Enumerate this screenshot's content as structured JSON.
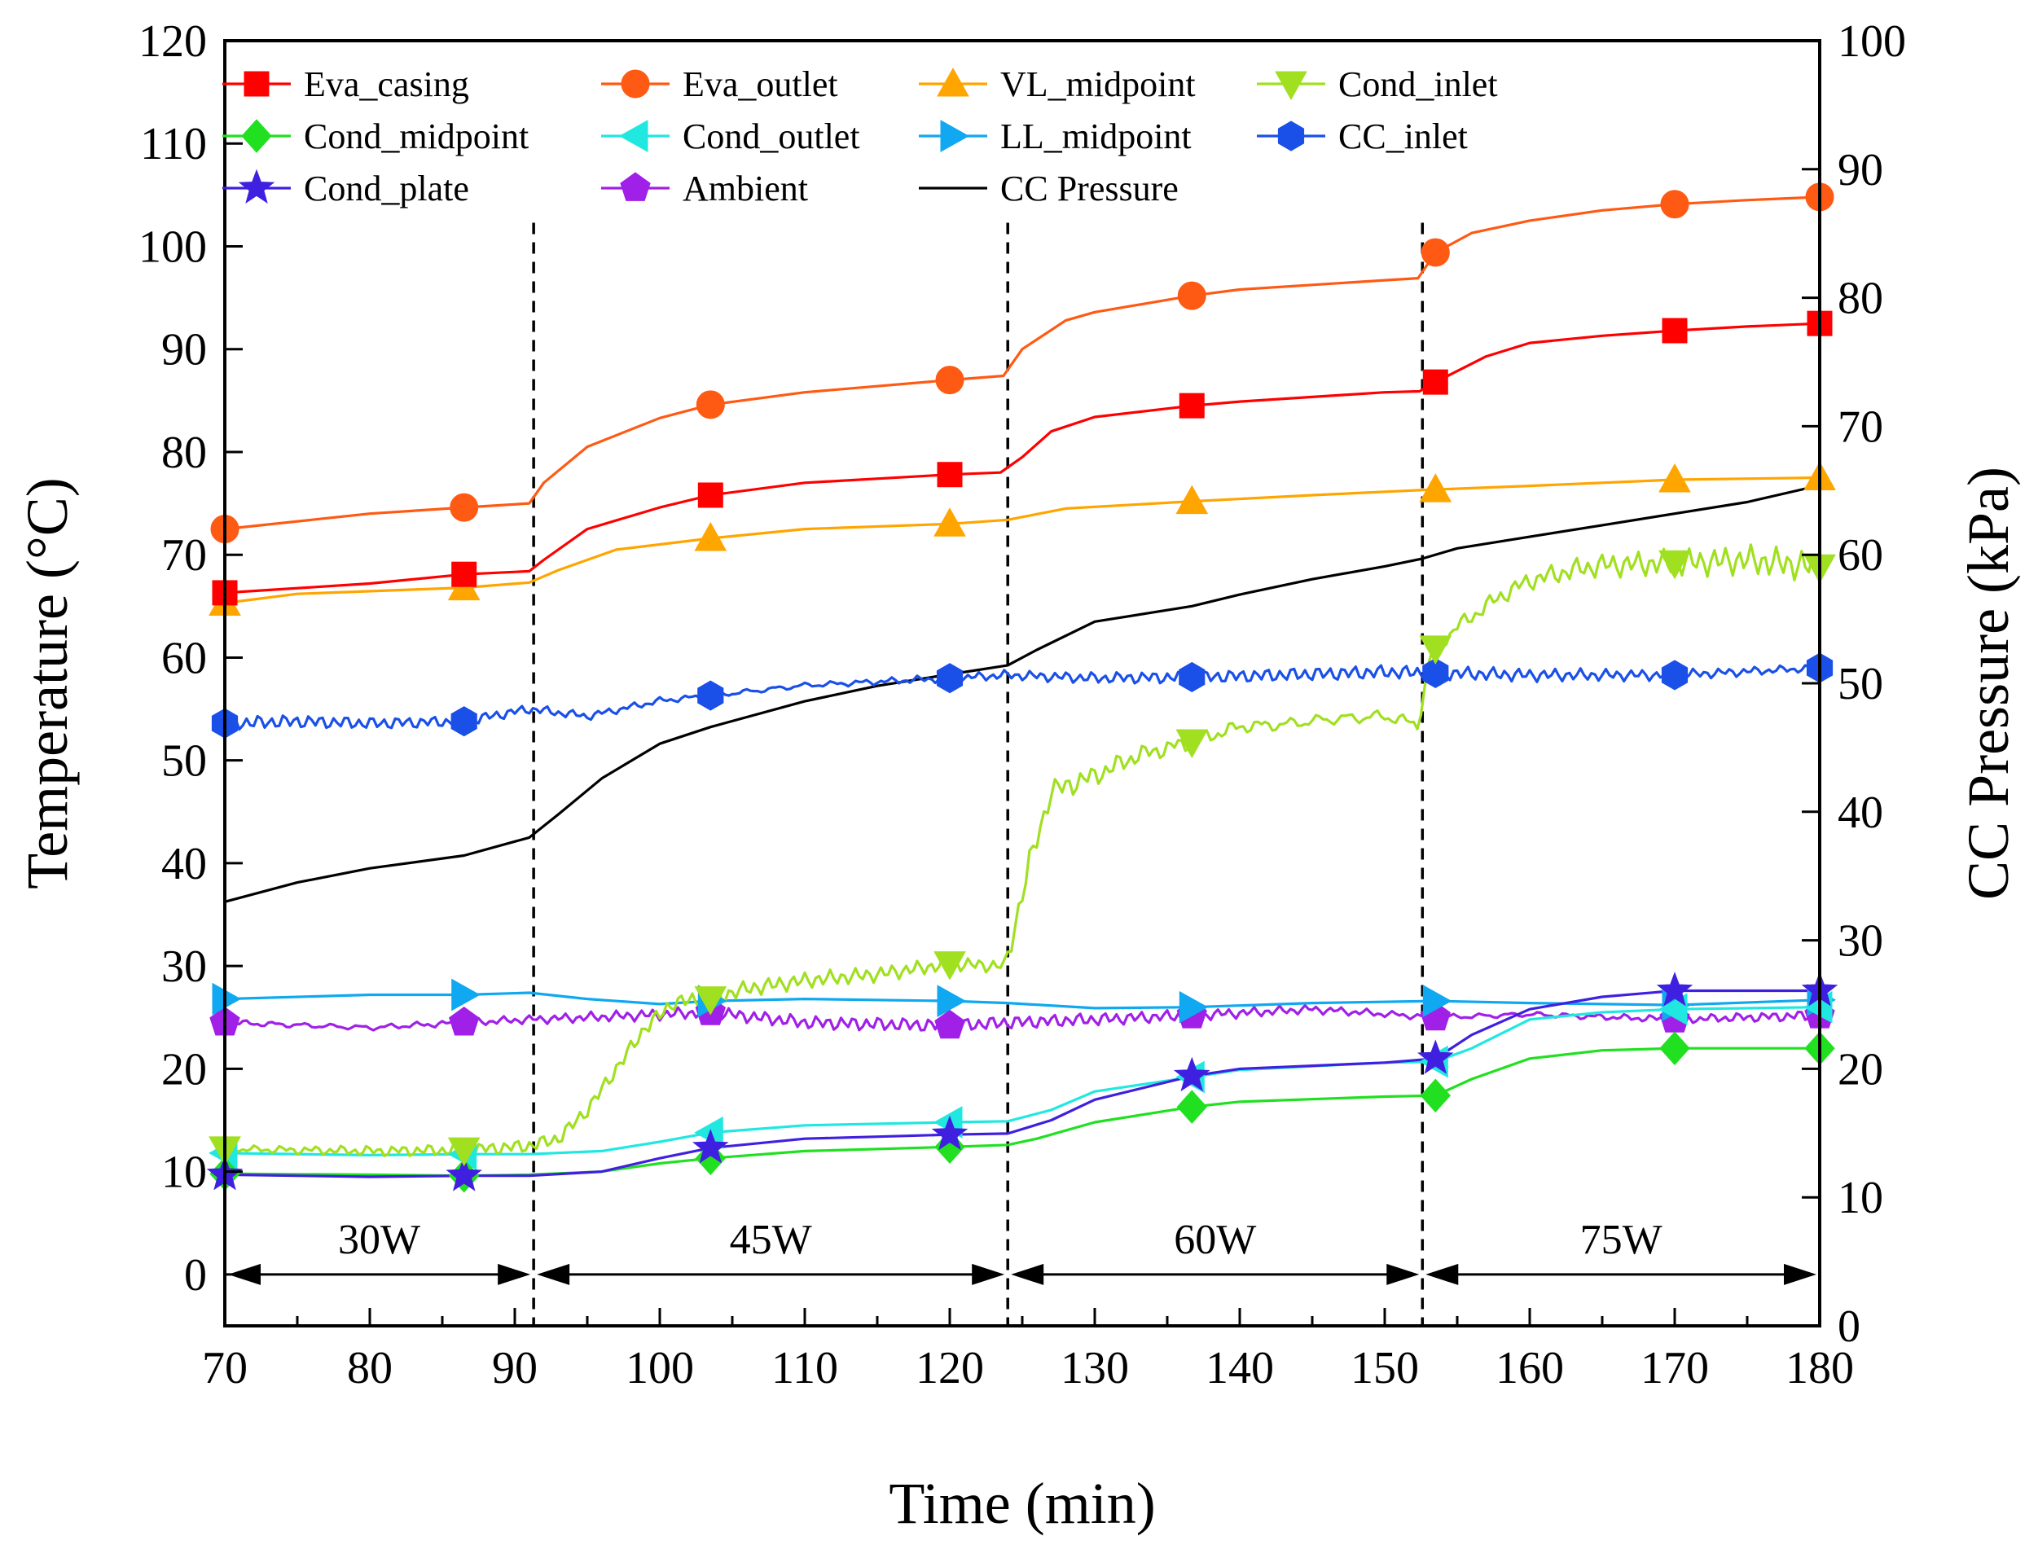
{
  "chart_data": {
    "type": "line",
    "title": "",
    "xlabel": "Time (min)",
    "ylabel": "Temperature (°C)",
    "y2label": "CC Pressure (kPa)",
    "xlim": [
      70,
      180
    ],
    "ylim": [
      -5,
      120
    ],
    "y2lim": [
      0,
      100
    ],
    "x_ticks": [
      70,
      80,
      90,
      100,
      110,
      120,
      130,
      140,
      150,
      160,
      170,
      180
    ],
    "y_ticks": [
      0,
      10,
      20,
      30,
      40,
      50,
      60,
      70,
      80,
      90,
      100,
      110,
      120
    ],
    "y2_ticks": [
      0,
      10,
      20,
      30,
      40,
      50,
      60,
      70,
      80,
      90,
      100
    ],
    "legend_position": "top",
    "phase_dividers": [
      91.3,
      124.0,
      152.6
    ],
    "phases": [
      {
        "label": "30W",
        "start": 70,
        "end": 91.3
      },
      {
        "label": "45W",
        "start": 91.3,
        "end": 124.0
      },
      {
        "label": "60W",
        "start": 124.0,
        "end": 152.6
      },
      {
        "label": "75W",
        "start": 152.6,
        "end": 180
      }
    ],
    "series": [
      {
        "name": "Eva_casing",
        "color": "#ff0000",
        "marker": "square",
        "axis": "left",
        "points": [
          [
            70,
            66.3
          ],
          [
            80,
            67.2
          ],
          [
            86.5,
            68.1
          ],
          [
            91,
            68.4
          ],
          [
            92,
            69.5
          ],
          [
            95,
            72.5
          ],
          [
            100,
            74.6
          ],
          [
            103.5,
            75.8
          ],
          [
            110,
            77.0
          ],
          [
            120,
            77.8
          ],
          [
            123.5,
            78.0
          ],
          [
            125,
            79.5
          ],
          [
            127,
            82.0
          ],
          [
            130,
            83.4
          ],
          [
            136.7,
            84.5
          ],
          [
            140,
            84.9
          ],
          [
            150,
            85.8
          ],
          [
            152.4,
            85.9
          ],
          [
            153.5,
            86.8
          ],
          [
            157,
            89.3
          ],
          [
            160,
            90.6
          ],
          [
            165,
            91.3
          ],
          [
            170,
            91.8
          ],
          [
            175,
            92.2
          ],
          [
            180,
            92.5
          ]
        ],
        "markers": [
          70,
          86.5,
          103.5,
          120,
          136.7,
          153.5,
          170,
          180
        ]
      },
      {
        "name": "Eva_outlet",
        "color": "#ff5a14",
        "marker": "circle",
        "axis": "left",
        "points": [
          [
            70,
            72.5
          ],
          [
            80,
            74.0
          ],
          [
            86.5,
            74.6
          ],
          [
            91,
            75.0
          ],
          [
            92,
            77.0
          ],
          [
            95,
            80.5
          ],
          [
            100,
            83.3
          ],
          [
            103.5,
            84.6
          ],
          [
            110,
            85.8
          ],
          [
            120,
            87.0
          ],
          [
            123.7,
            87.4
          ],
          [
            125,
            90.0
          ],
          [
            128,
            92.8
          ],
          [
            130,
            93.6
          ],
          [
            136.7,
            95.2
          ],
          [
            140,
            95.8
          ],
          [
            150,
            96.7
          ],
          [
            152.3,
            96.9
          ],
          [
            153.5,
            99.4
          ],
          [
            156,
            101.3
          ],
          [
            160,
            102.5
          ],
          [
            165,
            103.5
          ],
          [
            170,
            104.1
          ],
          [
            175,
            104.5
          ],
          [
            180,
            104.8
          ]
        ],
        "markers": [
          70,
          86.5,
          103.5,
          120,
          136.7,
          153.5,
          170,
          180
        ]
      },
      {
        "name": "VL_midpoint",
        "color": "#ffa500",
        "marker": "triangle-up",
        "axis": "left",
        "points": [
          [
            70,
            65.3
          ],
          [
            75,
            66.2
          ],
          [
            86.5,
            66.8
          ],
          [
            91,
            67.3
          ],
          [
            93,
            68.5
          ],
          [
            97,
            70.5
          ],
          [
            103.5,
            71.6
          ],
          [
            110,
            72.5
          ],
          [
            120,
            73.0
          ],
          [
            124,
            73.4
          ],
          [
            128,
            74.5
          ],
          [
            136.7,
            75.2
          ],
          [
            145,
            75.8
          ],
          [
            152.6,
            76.3
          ],
          [
            160,
            76.7
          ],
          [
            170,
            77.3
          ],
          [
            180,
            77.5
          ]
        ],
        "markers": [
          70,
          86.5,
          103.5,
          120,
          136.7,
          153.5,
          170,
          180
        ]
      },
      {
        "name": "Cond_inlet",
        "color": "#a0e020",
        "marker": "triangle-down",
        "axis": "left",
        "noisy": true,
        "points": [
          [
            70,
            12.2
          ],
          [
            80,
            12.0
          ],
          [
            86.5,
            12.1
          ],
          [
            91,
            12.5
          ],
          [
            93,
            13.2
          ],
          [
            95,
            16.0
          ],
          [
            97,
            20.0
          ],
          [
            99,
            24.0
          ],
          [
            101,
            26.5
          ],
          [
            103.5,
            26.8
          ],
          [
            106,
            27.8
          ],
          [
            110,
            28.6
          ],
          [
            115,
            29.2
          ],
          [
            120,
            30.2
          ],
          [
            123.8,
            30.0
          ],
          [
            124.5,
            34.0
          ],
          [
            125.5,
            40.0
          ],
          [
            127,
            47.0
          ],
          [
            130,
            48.5
          ],
          [
            133,
            50.5
          ],
          [
            136.7,
            51.8
          ],
          [
            140,
            53.3
          ],
          [
            143,
            53.5
          ],
          [
            146,
            54.0
          ],
          [
            150,
            54.3
          ],
          [
            152.3,
            53.5
          ],
          [
            153.2,
            60.5
          ],
          [
            155,
            63.0
          ],
          [
            158,
            66.0
          ],
          [
            160,
            67.5
          ],
          [
            163,
            68.5
          ],
          [
            165,
            69.0
          ],
          [
            170,
            69.2
          ],
          [
            175,
            69.5
          ],
          [
            180,
            68.8
          ]
        ],
        "markers": [
          70,
          86.5,
          103.5,
          120,
          136.7,
          153.5,
          170,
          180
        ]
      },
      {
        "name": "Cond_midpoint",
        "color": "#20e020",
        "marker": "diamond",
        "axis": "left",
        "points": [
          [
            70,
            9.8
          ],
          [
            80,
            9.7
          ],
          [
            86.5,
            9.6
          ],
          [
            91,
            9.7
          ],
          [
            96,
            10.0
          ],
          [
            100,
            10.8
          ],
          [
            103.5,
            11.3
          ],
          [
            110,
            12.0
          ],
          [
            120,
            12.4
          ],
          [
            124,
            12.6
          ],
          [
            126,
            13.2
          ],
          [
            130,
            14.8
          ],
          [
            136.7,
            16.3
          ],
          [
            140,
            16.8
          ],
          [
            150,
            17.3
          ],
          [
            153.5,
            17.4
          ],
          [
            156,
            19.0
          ],
          [
            160,
            21.0
          ],
          [
            165,
            21.8
          ],
          [
            170,
            22.0
          ],
          [
            180,
            22.0
          ]
        ],
        "markers": [
          70,
          86.5,
          103.5,
          120,
          136.7,
          153.5,
          170,
          180
        ]
      },
      {
        "name": "Cond_outlet",
        "color": "#20e8e0",
        "marker": "triangle-left",
        "axis": "left",
        "points": [
          [
            70,
            11.8
          ],
          [
            80,
            11.6
          ],
          [
            86.5,
            11.7
          ],
          [
            91,
            11.7
          ],
          [
            96,
            12.0
          ],
          [
            100,
            12.9
          ],
          [
            103.5,
            13.8
          ],
          [
            110,
            14.5
          ],
          [
            120,
            14.8
          ],
          [
            124,
            14.9
          ],
          [
            127,
            16.0
          ],
          [
            130,
            17.8
          ],
          [
            136.7,
            19.2
          ],
          [
            140,
            19.9
          ],
          [
            150,
            20.6
          ],
          [
            153.5,
            20.7
          ],
          [
            156,
            22.0
          ],
          [
            160,
            24.8
          ],
          [
            165,
            25.5
          ],
          [
            170,
            25.8
          ],
          [
            180,
            26.0
          ]
        ],
        "markers": [
          70,
          86.5,
          103.5,
          120,
          136.7,
          153.5,
          170,
          180
        ]
      },
      {
        "name": "LL_midpoint",
        "color": "#10a8f0",
        "marker": "triangle-right",
        "axis": "left",
        "points": [
          [
            70,
            26.8
          ],
          [
            80,
            27.2
          ],
          [
            86.5,
            27.2
          ],
          [
            91,
            27.4
          ],
          [
            95,
            26.8
          ],
          [
            100,
            26.3
          ],
          [
            103.5,
            26.6
          ],
          [
            110,
            26.8
          ],
          [
            120,
            26.6
          ],
          [
            124,
            26.4
          ],
          [
            130,
            25.9
          ],
          [
            136.7,
            26.0
          ],
          [
            145,
            26.4
          ],
          [
            153.5,
            26.6
          ],
          [
            160,
            26.4
          ],
          [
            170,
            26.2
          ],
          [
            180,
            26.7
          ]
        ],
        "markers": [
          70,
          86.5,
          103.5,
          120,
          136.7,
          153.5,
          170,
          180
        ]
      },
      {
        "name": "CC_inlet",
        "color": "#1a50e8",
        "marker": "hexagon",
        "axis": "left",
        "noisy": true,
        "points": [
          [
            70,
            53.6
          ],
          [
            75,
            53.8
          ],
          [
            80,
            53.6
          ],
          [
            86.5,
            53.8
          ],
          [
            91,
            55.0
          ],
          [
            95,
            54.3
          ],
          [
            100,
            55.8
          ],
          [
            103.5,
            56.3
          ],
          [
            110,
            57.3
          ],
          [
            120,
            58.0
          ],
          [
            124,
            58.3
          ],
          [
            130,
            58.0
          ],
          [
            136.7,
            58.1
          ],
          [
            140,
            58.2
          ],
          [
            150,
            58.6
          ],
          [
            153.5,
            58.5
          ],
          [
            160,
            58.3
          ],
          [
            170,
            58.3
          ],
          [
            180,
            59.0
          ]
        ],
        "markers": [
          70,
          86.5,
          103.5,
          120,
          136.7,
          153.5,
          170,
          180
        ]
      },
      {
        "name": "Cond_plate",
        "color": "#4020e0",
        "marker": "star",
        "axis": "left",
        "points": [
          [
            70,
            9.7
          ],
          [
            80,
            9.5
          ],
          [
            86.5,
            9.6
          ],
          [
            91,
            9.6
          ],
          [
            96,
            10.0
          ],
          [
            100,
            11.3
          ],
          [
            103.5,
            12.3
          ],
          [
            110,
            13.2
          ],
          [
            120,
            13.6
          ],
          [
            124,
            13.7
          ],
          [
            127,
            15.0
          ],
          [
            130,
            17.0
          ],
          [
            136.7,
            19.3
          ],
          [
            140,
            20.0
          ],
          [
            150,
            20.6
          ],
          [
            153.5,
            21.0
          ],
          [
            156,
            23.3
          ],
          [
            160,
            25.8
          ],
          [
            165,
            27.0
          ],
          [
            170,
            27.6
          ],
          [
            180,
            27.6
          ]
        ],
        "markers": [
          70,
          86.5,
          103.5,
          120,
          136.7,
          153.5,
          170,
          180
        ]
      },
      {
        "name": "Ambient",
        "color": "#a020e8",
        "marker": "pentagon",
        "axis": "left",
        "noisy": true,
        "points": [
          [
            70,
            24.5
          ],
          [
            80,
            24.0
          ],
          [
            86.5,
            24.5
          ],
          [
            91,
            24.8
          ],
          [
            95,
            25.0
          ],
          [
            103.5,
            25.5
          ],
          [
            110,
            24.5
          ],
          [
            120,
            24.2
          ],
          [
            124,
            24.5
          ],
          [
            130,
            24.8
          ],
          [
            136.7,
            25.2
          ],
          [
            145,
            25.8
          ],
          [
            153.5,
            25.0
          ],
          [
            160,
            25.3
          ],
          [
            170,
            24.8
          ],
          [
            180,
            25.2
          ]
        ],
        "markers": [
          70,
          86.5,
          103.5,
          120,
          136.7,
          153.5,
          170,
          180
        ]
      },
      {
        "name": "CC Pressure",
        "color": "#000000",
        "marker": "none",
        "axis": "right",
        "points": [
          [
            70,
            33.0
          ],
          [
            75,
            34.5
          ],
          [
            80,
            35.6
          ],
          [
            86.5,
            36.6
          ],
          [
            91,
            38.0
          ],
          [
            93,
            39.8
          ],
          [
            96,
            42.6
          ],
          [
            100,
            45.3
          ],
          [
            103.5,
            46.6
          ],
          [
            110,
            48.6
          ],
          [
            115,
            49.8
          ],
          [
            120,
            50.7
          ],
          [
            124,
            51.4
          ],
          [
            126,
            52.6
          ],
          [
            130,
            54.8
          ],
          [
            136.7,
            56.0
          ],
          [
            140,
            56.9
          ],
          [
            145,
            58.1
          ],
          [
            150,
            59.1
          ],
          [
            152.6,
            59.7
          ],
          [
            155,
            60.5
          ],
          [
            160,
            61.4
          ],
          [
            165,
            62.3
          ],
          [
            170,
            63.2
          ],
          [
            175,
            64.1
          ],
          [
            180,
            65.4
          ]
        ],
        "markers": []
      }
    ]
  }
}
